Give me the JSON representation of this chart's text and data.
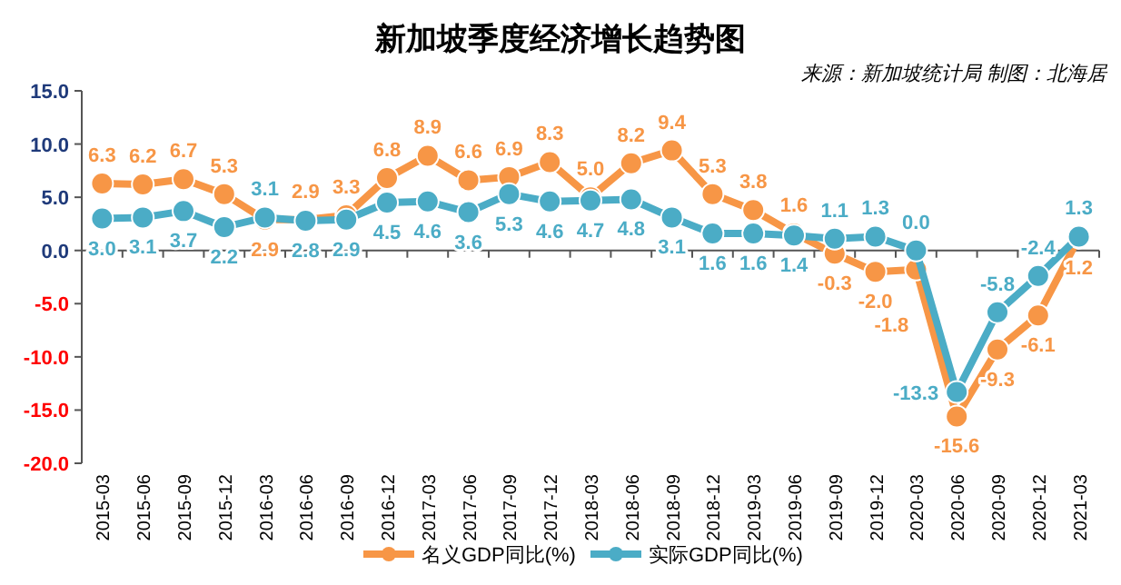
{
  "chart_data": {
    "type": "line",
    "title": "新加坡季度经济增长趋势图",
    "annotations": [
      "来源：新加坡统计局 制图：北海居"
    ],
    "categories": [
      "2015-03",
      "2015-06",
      "2015-09",
      "2015-12",
      "2016-03",
      "2016-06",
      "2016-09",
      "2016-12",
      "2017-03",
      "2017-06",
      "2017-09",
      "2017-12",
      "2018-03",
      "2018-06",
      "2018-09",
      "2018-12",
      "2019-03",
      "2019-06",
      "2019-09",
      "2019-12",
      "2020-03",
      "2020-06",
      "2020-09",
      "2020-12",
      "2021-03"
    ],
    "series": [
      {
        "name": "名义GDP同比(%)",
        "color": "#f79646",
        "values": [
          6.3,
          6.2,
          6.7,
          5.3,
          2.9,
          2.9,
          3.3,
          6.8,
          8.9,
          6.6,
          6.9,
          8.3,
          5.0,
          8.2,
          9.4,
          5.3,
          3.8,
          1.6,
          -0.3,
          -2.0,
          -1.8,
          -15.6,
          -9.3,
          -6.1,
          1.2
        ],
        "value_labels": [
          "6.3",
          "6.2",
          "6.7",
          "5.3",
          "2.9",
          "2.9",
          "3.3",
          "6.8",
          "8.9",
          "6.6",
          "6.9",
          "8.3",
          "5.0",
          "8.2",
          "9.4",
          "5.3",
          "3.8",
          "1.6",
          "-0.3",
          "-2.0",
          "-1.8",
          "-15.6",
          "-9.3",
          "-6.1",
          "1.2"
        ]
      },
      {
        "name": "实际GDP同比(%)",
        "color": "#4bacc6",
        "values": [
          3.0,
          3.1,
          3.7,
          2.2,
          3.1,
          2.8,
          2.9,
          4.5,
          4.6,
          3.6,
          5.3,
          4.6,
          4.7,
          4.8,
          3.1,
          1.6,
          1.6,
          1.4,
          1.1,
          1.3,
          0.0,
          -13.3,
          -5.8,
          -2.4,
          1.3
        ],
        "value_labels": [
          "3.0",
          "3.1",
          "3.7",
          "2.2",
          "3.1",
          "2.8",
          "2.9",
          "4.5",
          "4.6",
          "3.6",
          "5.3",
          "4.6",
          "4.7",
          "4.8",
          "3.1",
          "1.6",
          "1.6",
          "1.4",
          "1.1",
          "1.3",
          "0.0",
          "-13.3",
          "-5.8",
          "-2.4",
          "1.3"
        ]
      }
    ],
    "ylim": [
      -20,
      15
    ],
    "yticks": [
      {
        "value": 15,
        "label": "15.0"
      },
      {
        "value": 10,
        "label": "10.0"
      },
      {
        "value": 5,
        "label": "5.0"
      },
      {
        "value": 0,
        "label": "0.0"
      },
      {
        "value": -5,
        "label": "-5.0"
      },
      {
        "value": -10,
        "label": "-10.0"
      },
      {
        "value": -15,
        "label": "-15.0"
      },
      {
        "value": -20,
        "label": "-20.0"
      }
    ],
    "marker": "circle",
    "line_style": "solid",
    "legend": "bottom"
  }
}
